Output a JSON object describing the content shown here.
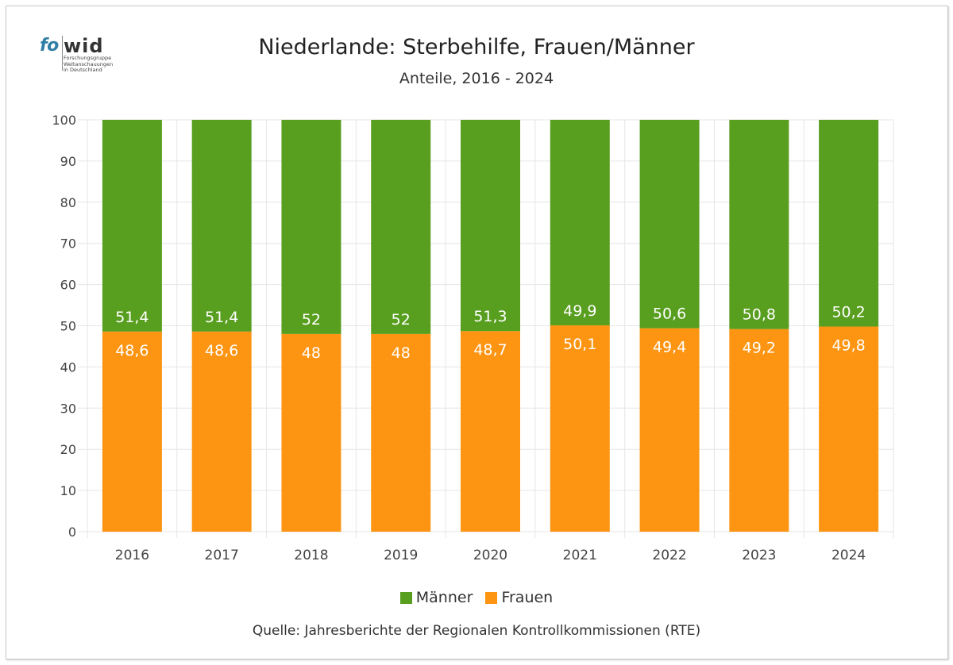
{
  "logo": {
    "brand_left": "fo",
    "brand_right": "wid",
    "tagline": "Forschungsgruppe\nWeltanschauungen\nin Deutschland"
  },
  "colors": {
    "maenner": "#589e1f",
    "frauen": "#fd9412",
    "grid": "#e6e6e6",
    "label": "#ffffff"
  },
  "chart_data": {
    "type": "bar",
    "stacked": true,
    "title": "Niederlande: Sterbehilfe, Frauen/Männer",
    "subtitle": "Anteile, 2016 - 2024",
    "xlabel": "",
    "ylabel": "",
    "ylim": [
      0,
      100
    ],
    "yticks": [
      0,
      10,
      20,
      30,
      40,
      50,
      60,
      70,
      80,
      90,
      100
    ],
    "grid": true,
    "categories": [
      "2016",
      "2017",
      "2018",
      "2019",
      "2020",
      "2021",
      "2022",
      "2023",
      "2024"
    ],
    "series": [
      {
        "name": "Frauen",
        "color": "#fd9412",
        "values": [
          48.6,
          48.6,
          48,
          48,
          48.7,
          50.1,
          49.4,
          49.2,
          49.8
        ],
        "labels": [
          "48,6",
          "48,6",
          "48",
          "48",
          "48,7",
          "50,1",
          "49,4",
          "49,2",
          "49,8"
        ]
      },
      {
        "name": "Männer",
        "color": "#589e1f",
        "values": [
          51.4,
          51.4,
          52,
          52,
          51.3,
          49.9,
          50.6,
          50.8,
          50.2
        ],
        "labels": [
          "51,4",
          "51,4",
          "52",
          "52",
          "51,3",
          "49,9",
          "50,6",
          "50,8",
          "50,2"
        ]
      }
    ],
    "legend": {
      "position": "bottom",
      "entries": [
        "Männer",
        "Frauen"
      ]
    },
    "source": "Quelle: Jahresberichte der Regionalen Kontrollkommissionen (RTE)"
  }
}
